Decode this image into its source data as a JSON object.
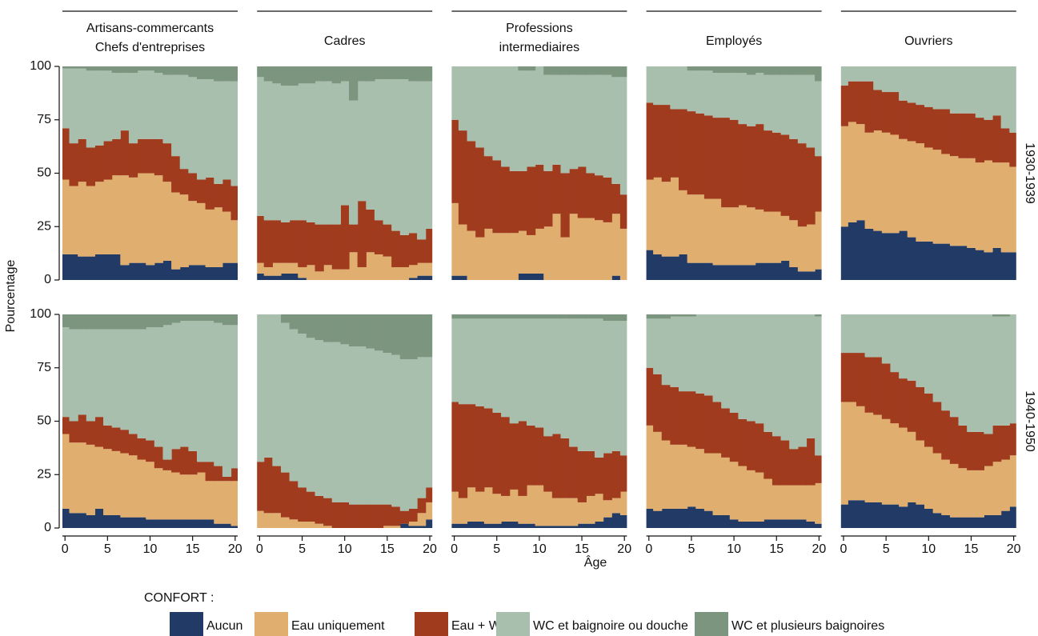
{
  "chart_data": {
    "type": "stacked-bar",
    "column_titles": [
      [
        "Artisans-commercants",
        "Chefs d'entreprises"
      ],
      [
        "Cadres"
      ],
      [
        "Professions",
        "intermediaires"
      ],
      [
        "Employés"
      ],
      [
        "Ouvriers"
      ]
    ],
    "row_titles": [
      "1930-1939",
      "1940-1950"
    ],
    "xlabel": "Âge",
    "ylabel": "Pourcentage",
    "legend_title": "CONFORT :",
    "series": [
      {
        "name": "Aucun",
        "color": "#213a66"
      },
      {
        "name": "Eau uniquement",
        "color": "#e0ae6e"
      },
      {
        "name": "Eau + WC",
        "color": "#a03b1e"
      },
      {
        "name": "WC et baignoire ou douche",
        "color": "#a9bfad"
      },
      {
        "name": "WC et plusieurs baignoires",
        "color": "#7c957f"
      }
    ],
    "x": [
      0,
      1,
      2,
      3,
      4,
      5,
      6,
      7,
      8,
      9,
      10,
      11,
      12,
      13,
      14,
      15,
      16,
      17,
      18,
      19,
      20
    ],
    "xlim": [
      -0.3,
      20.3
    ],
    "xticks": [
      0,
      5,
      10,
      15,
      20
    ],
    "ylim": [
      0,
      100
    ],
    "yticks": [
      0,
      25,
      50,
      75,
      100
    ],
    "panels": [
      [
        [
          [
            12,
            12,
            11,
            11,
            12,
            12,
            12,
            7,
            8,
            8,
            7,
            8,
            9,
            5,
            6,
            7,
            7,
            6,
            6,
            8,
            8
          ],
          [
            35,
            32,
            35,
            33,
            34,
            35,
            37,
            42,
            40,
            42,
            43,
            41,
            37,
            36,
            34,
            30,
            29,
            27,
            28,
            24,
            20
          ],
          [
            24,
            20,
            20,
            18,
            17,
            18,
            17,
            21,
            16,
            16,
            16,
            17,
            18,
            17,
            12,
            13,
            11,
            15,
            11,
            15,
            16
          ],
          [
            28,
            35,
            33,
            36,
            35,
            33,
            31,
            27,
            33,
            32,
            32,
            31,
            32,
            38,
            44,
            45,
            47,
            46,
            48,
            46,
            49
          ],
          [
            1,
            1,
            1,
            2,
            2,
            2,
            3,
            3,
            3,
            2,
            2,
            3,
            4,
            4,
            4,
            5,
            6,
            6,
            7,
            7,
            7
          ]
        ],
        [
          [
            3,
            2,
            2,
            3,
            3,
            1,
            0,
            0,
            0,
            0,
            0,
            0,
            0,
            0,
            0,
            0,
            0,
            0,
            1,
            2,
            2
          ],
          [
            5,
            4,
            6,
            5,
            5,
            5,
            7,
            4,
            7,
            5,
            5,
            13,
            6,
            13,
            12,
            11,
            6,
            6,
            6,
            6,
            6
          ],
          [
            22,
            22,
            20,
            19,
            20,
            22,
            20,
            22,
            19,
            21,
            30,
            13,
            31,
            20,
            16,
            15,
            17,
            15,
            15,
            11,
            16
          ],
          [
            65,
            65,
            64,
            64,
            63,
            64,
            65,
            67,
            67,
            66,
            58,
            58,
            56,
            60,
            66,
            68,
            71,
            73,
            71,
            74,
            69
          ],
          [
            5,
            7,
            8,
            9,
            9,
            8,
            8,
            7,
            7,
            8,
            7,
            16,
            7,
            7,
            6,
            6,
            6,
            6,
            7,
            7,
            7
          ]
        ],
        [
          [
            2,
            2,
            0,
            0,
            0,
            0,
            0,
            0,
            3,
            3,
            3,
            0,
            0,
            0,
            0,
            0,
            0,
            0,
            0,
            2,
            0
          ],
          [
            34,
            24,
            23,
            20,
            24,
            22,
            22,
            22,
            20,
            18,
            21,
            25,
            31,
            20,
            31,
            29,
            29,
            28,
            27,
            29,
            24
          ],
          [
            39,
            44,
            42,
            42,
            34,
            34,
            31,
            29,
            28,
            32,
            30,
            26,
            23,
            30,
            21,
            24,
            21,
            21,
            21,
            14,
            16
          ],
          [
            25,
            30,
            35,
            38,
            42,
            44,
            47,
            49,
            47,
            45,
            46,
            45,
            42,
            46,
            44,
            43,
            46,
            47,
            48,
            50,
            55
          ],
          [
            0,
            0,
            0,
            0,
            0,
            0,
            0,
            0,
            2,
            2,
            0,
            4,
            4,
            4,
            4,
            4,
            4,
            4,
            4,
            5,
            5
          ]
        ],
        [
          [
            14,
            12,
            11,
            11,
            12,
            8,
            8,
            8,
            7,
            7,
            7,
            7,
            7,
            8,
            8,
            8,
            9,
            6,
            4,
            4,
            5
          ],
          [
            33,
            36,
            35,
            37,
            30,
            32,
            32,
            30,
            31,
            27,
            27,
            28,
            27,
            25,
            24,
            24,
            21,
            22,
            21,
            22,
            27
          ],
          [
            36,
            34,
            36,
            32,
            38,
            39,
            38,
            39,
            38,
            42,
            41,
            38,
            38,
            40,
            38,
            37,
            38,
            38,
            39,
            36,
            26
          ],
          [
            17,
            18,
            18,
            20,
            20,
            19,
            20,
            21,
            21,
            21,
            22,
            24,
            24,
            24,
            26,
            27,
            28,
            30,
            32,
            34,
            35
          ],
          [
            0,
            0,
            0,
            0,
            0,
            2,
            2,
            2,
            3,
            3,
            3,
            3,
            4,
            3,
            4,
            4,
            4,
            4,
            4,
            4,
            7
          ]
        ],
        [
          [
            25,
            27,
            28,
            24,
            23,
            22,
            22,
            23,
            20,
            18,
            18,
            17,
            17,
            16,
            16,
            15,
            14,
            13,
            15,
            13,
            13
          ],
          [
            47,
            47,
            45,
            45,
            47,
            47,
            46,
            43,
            45,
            46,
            44,
            44,
            42,
            42,
            41,
            42,
            41,
            43,
            40,
            42,
            40
          ],
          [
            19,
            19,
            20,
            24,
            19,
            19,
            20,
            18,
            18,
            18,
            19,
            19,
            21,
            20,
            21,
            21,
            21,
            19,
            22,
            16,
            16
          ],
          [
            9,
            7,
            7,
            7,
            11,
            12,
            12,
            16,
            17,
            18,
            19,
            20,
            20,
            22,
            22,
            22,
            24,
            25,
            23,
            29,
            31
          ],
          [
            0,
            0,
            0,
            0,
            0,
            0,
            0,
            0,
            0,
            0,
            0,
            0,
            0,
            0,
            0,
            0,
            0,
            0,
            0,
            0,
            0
          ]
        ]
      ],
      [
        [
          [
            9,
            7,
            7,
            6,
            9,
            6,
            6,
            5,
            5,
            5,
            4,
            4,
            4,
            4,
            4,
            4,
            4,
            4,
            2,
            2,
            1
          ],
          [
            35,
            33,
            33,
            33,
            29,
            31,
            30,
            30,
            29,
            27,
            27,
            24,
            23,
            22,
            21,
            21,
            22,
            18,
            20,
            20,
            21
          ],
          [
            8,
            10,
            13,
            11,
            14,
            11,
            11,
            11,
            10,
            10,
            10,
            10,
            5,
            11,
            13,
            11,
            5,
            9,
            7,
            2,
            6
          ],
          [
            42,
            43,
            40,
            43,
            41,
            45,
            46,
            47,
            49,
            51,
            53,
            56,
            63,
            59,
            59,
            61,
            66,
            66,
            67,
            71,
            67
          ],
          [
            6,
            7,
            7,
            7,
            7,
            7,
            7,
            7,
            7,
            7,
            6,
            6,
            5,
            4,
            3,
            3,
            3,
            3,
            4,
            5,
            5
          ]
        ],
        [
          [
            0,
            0,
            0,
            0,
            0,
            0,
            0,
            0,
            0,
            0,
            0,
            0,
            0,
            0,
            0,
            0,
            0,
            2,
            1,
            1,
            4
          ],
          [
            8,
            7,
            7,
            5,
            4,
            3,
            3,
            2,
            1,
            0,
            0,
            0,
            0,
            0,
            0,
            1,
            1,
            0,
            2,
            6,
            8
          ],
          [
            23,
            26,
            22,
            21,
            18,
            16,
            14,
            13,
            13,
            12,
            12,
            11,
            11,
            11,
            11,
            10,
            9,
            6,
            6,
            7,
            7
          ],
          [
            69,
            67,
            71,
            70,
            71,
            72,
            72,
            73,
            73,
            75,
            74,
            74,
            74,
            73,
            72,
            71,
            71,
            71,
            70,
            66,
            61
          ],
          [
            0,
            0,
            0,
            4,
            7,
            9,
            11,
            12,
            13,
            13,
            14,
            15,
            15,
            16,
            17,
            18,
            19,
            21,
            21,
            20,
            20
          ]
        ],
        [
          [
            2,
            2,
            3,
            3,
            2,
            2,
            3,
            3,
            2,
            2,
            1,
            1,
            1,
            1,
            1,
            2,
            2,
            3,
            5,
            7,
            6
          ],
          [
            15,
            12,
            16,
            14,
            17,
            14,
            12,
            15,
            13,
            18,
            19,
            16,
            13,
            13,
            13,
            10,
            13,
            13,
            8,
            7,
            11
          ],
          [
            42,
            44,
            39,
            40,
            37,
            38,
            37,
            31,
            35,
            28,
            27,
            26,
            30,
            28,
            24,
            24,
            21,
            17,
            22,
            22,
            17
          ],
          [
            39,
            40,
            40,
            41,
            42,
            44,
            46,
            49,
            48,
            50,
            51,
            55,
            54,
            56,
            60,
            62,
            62,
            65,
            62,
            61,
            63
          ],
          [
            2,
            2,
            2,
            2,
            2,
            2,
            2,
            2,
            2,
            2,
            2,
            2,
            2,
            2,
            2,
            2,
            2,
            2,
            3,
            3,
            3
          ]
        ],
        [
          [
            9,
            8,
            9,
            9,
            9,
            10,
            9,
            8,
            6,
            6,
            4,
            3,
            3,
            3,
            4,
            4,
            4,
            4,
            4,
            3,
            2
          ],
          [
            39,
            37,
            32,
            30,
            30,
            28,
            28,
            27,
            29,
            27,
            27,
            26,
            24,
            23,
            19,
            16,
            16,
            16,
            16,
            17,
            19
          ],
          [
            27,
            27,
            26,
            27,
            25,
            26,
            26,
            27,
            24,
            23,
            23,
            22,
            23,
            23,
            22,
            23,
            21,
            17,
            18,
            22,
            13
          ],
          [
            23,
            26,
            31,
            33,
            35,
            35,
            37,
            38,
            41,
            44,
            46,
            49,
            50,
            51,
            55,
            57,
            59,
            63,
            62,
            58,
            65
          ],
          [
            2,
            2,
            2,
            1,
            1,
            1,
            0,
            0,
            0,
            0,
            0,
            0,
            0,
            0,
            0,
            0,
            0,
            0,
            0,
            0,
            1
          ]
        ],
        [
          [
            11,
            13,
            13,
            12,
            12,
            11,
            11,
            10,
            12,
            11,
            9,
            7,
            6,
            5,
            5,
            5,
            5,
            6,
            6,
            8,
            10
          ],
          [
            48,
            46,
            44,
            42,
            41,
            40,
            38,
            37,
            33,
            30,
            29,
            28,
            26,
            25,
            23,
            22,
            22,
            23,
            25,
            24,
            24
          ],
          [
            23,
            23,
            25,
            26,
            27,
            26,
            24,
            23,
            24,
            25,
            25,
            24,
            23,
            22,
            20,
            18,
            18,
            15,
            17,
            16,
            15
          ],
          [
            18,
            18,
            18,
            20,
            20,
            23,
            27,
            30,
            31,
            34,
            37,
            41,
            45,
            48,
            52,
            55,
            55,
            56,
            51,
            51,
            51
          ],
          [
            0,
            0,
            0,
            0,
            0,
            0,
            0,
            0,
            0,
            0,
            0,
            0,
            0,
            0,
            0,
            0,
            0,
            0,
            1,
            1,
            0
          ]
        ]
      ]
    ]
  }
}
